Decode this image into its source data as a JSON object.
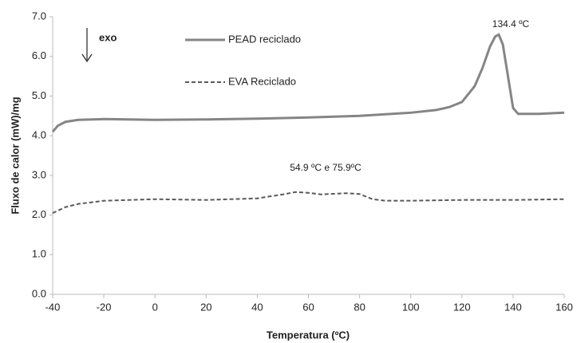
{
  "chart_data": {
    "type": "line",
    "xlabel": "Temperatura (ºC)",
    "ylabel": "Fluxo de calor (mW)/mg",
    "xlim": [
      -40,
      160
    ],
    "xticks": [
      -40,
      -20,
      0,
      20,
      40,
      60,
      80,
      100,
      120,
      140,
      160
    ],
    "ylim": [
      0,
      7
    ],
    "yticks": [
      {
        "value": 0,
        "label": "0.0"
      },
      {
        "value": 1,
        "label": "1.0"
      },
      {
        "value": 2,
        "label": "2.0"
      },
      {
        "value": 3,
        "label": "3.0"
      },
      {
        "value": 4,
        "label": "4.0"
      },
      {
        "value": 5,
        "label": "5.0"
      },
      {
        "value": 6,
        "label": "6.0"
      },
      {
        "value": 7,
        "label": "7.0"
      }
    ],
    "grid": false,
    "annotations": [
      "exo",
      "134.4 ºC",
      "54.9 ºC e 75.9ºC"
    ],
    "series": [
      {
        "name": "PEAD reciclado",
        "color": "#858585",
        "dash": false,
        "x": [
          -40,
          -38,
          -35,
          -30,
          -20,
          0,
          20,
          40,
          60,
          80,
          100,
          110,
          115,
          120,
          125,
          128,
          131,
          133,
          134.4,
          136,
          138,
          140,
          142,
          150,
          160
        ],
        "values": [
          4.1,
          4.25,
          4.35,
          4.4,
          4.42,
          4.4,
          4.41,
          4.43,
          4.46,
          4.5,
          4.58,
          4.65,
          4.72,
          4.85,
          5.25,
          5.7,
          6.25,
          6.5,
          6.55,
          6.3,
          5.5,
          4.7,
          4.55,
          4.55,
          4.58
        ]
      },
      {
        "name": "EVA Reciclado",
        "color": "#595959",
        "dash": true,
        "x": [
          -40,
          -35,
          -30,
          -20,
          0,
          20,
          40,
          50,
          55,
          60,
          65,
          75,
          80,
          85,
          90,
          100,
          120,
          140,
          160
        ],
        "values": [
          2.05,
          2.2,
          2.28,
          2.36,
          2.4,
          2.38,
          2.42,
          2.52,
          2.58,
          2.56,
          2.52,
          2.55,
          2.53,
          2.4,
          2.36,
          2.36,
          2.38,
          2.38,
          2.4
        ]
      }
    ]
  }
}
